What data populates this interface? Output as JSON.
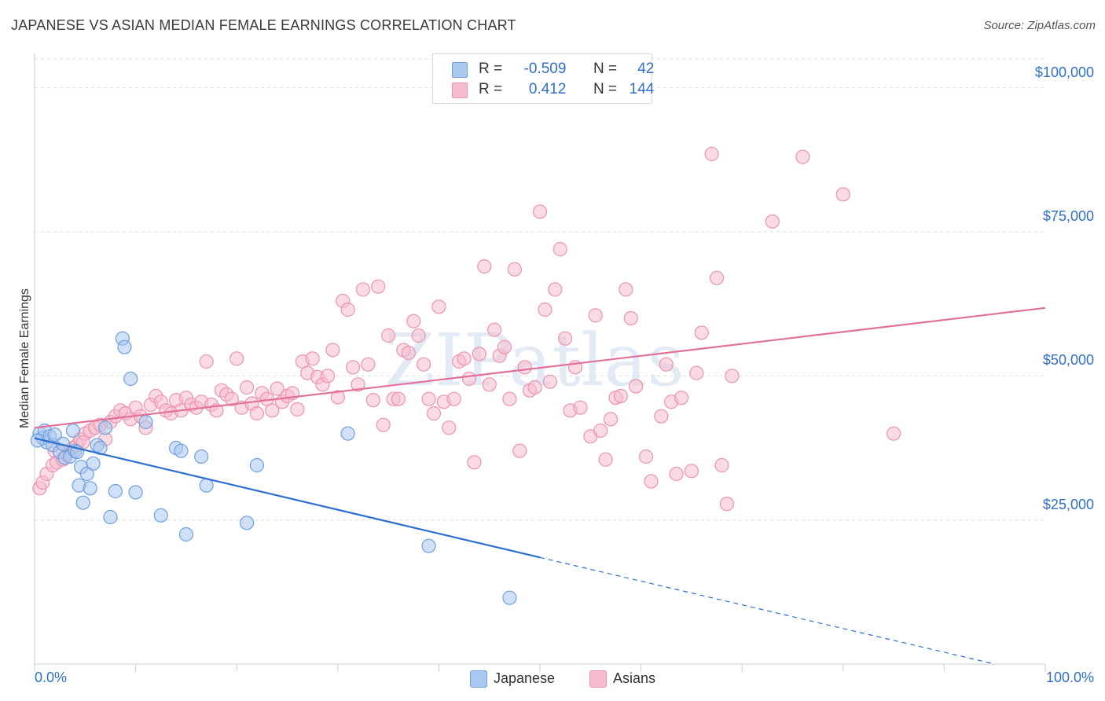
{
  "header": {
    "title": "JAPANESE VS ASIAN MEDIAN FEMALE EARNINGS CORRELATION CHART",
    "source": "Source: ZipAtlas.com"
  },
  "watermark": "ZIPatlas",
  "legend": {
    "rows": [
      {
        "r_label": "R =",
        "r_value": "-0.509",
        "n_label": "N =",
        "n_value": "42"
      },
      {
        "r_label": "R =",
        "r_value": "0.412",
        "n_label": "N =",
        "n_value": "144"
      }
    ]
  },
  "colors": {
    "japanese_fill": "#a9c7ef",
    "japanese_stroke": "#6f9fdc",
    "japanese_line": "#2d6fd0",
    "asians_fill": "#f6bccd",
    "asians_stroke": "#ec93ae",
    "asians_line": "#e2709a",
    "axis_text": "#2f6fc9"
  },
  "chart_data": {
    "type": "scatter",
    "title": "JAPANESE VS ASIAN MEDIAN FEMALE EARNINGS CORRELATION CHART",
    "xlabel": "",
    "ylabel": "Median Female Earnings",
    "xlim": [
      0,
      100
    ],
    "ylim": [
      0,
      105000
    ],
    "x_tick_labels": [
      "0.0%",
      "100.0%"
    ],
    "y_ticks": [
      25000,
      50000,
      75000,
      100000
    ],
    "y_tick_labels": [
      "$25,000",
      "$50,000",
      "$75,000",
      "$100,000"
    ],
    "grid": "horizontal dashed",
    "legend_position": "top-center",
    "series": [
      {
        "name": "Japanese",
        "points": [
          [
            0.5,
            40000
          ],
          [
            0.8,
            39200
          ],
          [
            1.0,
            40500
          ],
          [
            1.2,
            38500
          ],
          [
            1.5,
            39500
          ],
          [
            1.8,
            38000
          ],
          [
            2.0,
            39800
          ],
          [
            2.5,
            36800
          ],
          [
            2.8,
            38200
          ],
          [
            3.0,
            35800
          ],
          [
            3.5,
            36000
          ],
          [
            3.8,
            40500
          ],
          [
            4.0,
            37000
          ],
          [
            4.2,
            36800
          ],
          [
            4.4,
            31000
          ],
          [
            4.6,
            34200
          ],
          [
            4.8,
            28000
          ],
          [
            5.2,
            33000
          ],
          [
            5.5,
            30500
          ],
          [
            5.8,
            34800
          ],
          [
            6.2,
            38000
          ],
          [
            6.5,
            37500
          ],
          [
            7.0,
            41000
          ],
          [
            7.5,
            25500
          ],
          [
            8.0,
            30000
          ],
          [
            8.7,
            56500
          ],
          [
            8.9,
            55000
          ],
          [
            9.5,
            49500
          ],
          [
            10.0,
            29800
          ],
          [
            11.0,
            42000
          ],
          [
            12.5,
            25800
          ],
          [
            14.0,
            37500
          ],
          [
            14.5,
            37000
          ],
          [
            15.0,
            22500
          ],
          [
            16.5,
            36000
          ],
          [
            17.0,
            31000
          ],
          [
            21.0,
            24500
          ],
          [
            22.0,
            34500
          ],
          [
            31.0,
            40000
          ],
          [
            39.0,
            20500
          ],
          [
            47.0,
            11500
          ],
          [
            0.3,
            38800
          ]
        ]
      },
      {
        "name": "Asians",
        "points": [
          [
            0.5,
            30500
          ],
          [
            0.8,
            31500
          ],
          [
            1.2,
            33000
          ],
          [
            1.8,
            34500
          ],
          [
            2.2,
            35000
          ],
          [
            2.8,
            35500
          ],
          [
            3.2,
            36500
          ],
          [
            3.8,
            37500
          ],
          [
            4.2,
            38000
          ],
          [
            4.5,
            39000
          ],
          [
            5.0,
            40000
          ],
          [
            5.5,
            40500
          ],
          [
            6.0,
            41000
          ],
          [
            6.5,
            41500
          ],
          [
            7.0,
            39000
          ],
          [
            7.5,
            42000
          ],
          [
            8.0,
            43000
          ],
          [
            8.5,
            44000
          ],
          [
            9.0,
            43500
          ],
          [
            9.5,
            42500
          ],
          [
            10.0,
            44500
          ],
          [
            10.5,
            43000
          ],
          [
            11.0,
            41000
          ],
          [
            11.5,
            45000
          ],
          [
            12.0,
            46500
          ],
          [
            12.5,
            45500
          ],
          [
            13.0,
            44000
          ],
          [
            13.5,
            43500
          ],
          [
            14.0,
            45800
          ],
          [
            14.5,
            44000
          ],
          [
            15.0,
            46200
          ],
          [
            15.5,
            45000
          ],
          [
            16.0,
            44500
          ],
          [
            16.5,
            45500
          ],
          [
            17.0,
            52500
          ],
          [
            17.5,
            45000
          ],
          [
            18.0,
            44000
          ],
          [
            18.5,
            47500
          ],
          [
            19.0,
            46800
          ],
          [
            19.5,
            46000
          ],
          [
            20.0,
            53000
          ],
          [
            20.5,
            44500
          ],
          [
            21.0,
            48000
          ],
          [
            21.5,
            45200
          ],
          [
            22.0,
            43500
          ],
          [
            22.5,
            47000
          ],
          [
            23.0,
            46000
          ],
          [
            23.5,
            44000
          ],
          [
            24.0,
            47800
          ],
          [
            24.5,
            45500
          ],
          [
            25.0,
            46500
          ],
          [
            25.5,
            47000
          ],
          [
            26.0,
            44200
          ],
          [
            26.5,
            52500
          ],
          [
            27.0,
            50500
          ],
          [
            27.5,
            53000
          ],
          [
            28.0,
            49800
          ],
          [
            28.5,
            48500
          ],
          [
            29.0,
            50000
          ],
          [
            29.5,
            54500
          ],
          [
            30.0,
            46300
          ],
          [
            30.5,
            63000
          ],
          [
            31.0,
            61500
          ],
          [
            31.5,
            51500
          ],
          [
            32.0,
            48500
          ],
          [
            32.5,
            65000
          ],
          [
            33.0,
            52000
          ],
          [
            33.5,
            45800
          ],
          [
            34.0,
            65500
          ],
          [
            34.5,
            41500
          ],
          [
            35.0,
            57000
          ],
          [
            35.5,
            46000
          ],
          [
            36.0,
            46000
          ],
          [
            36.5,
            54500
          ],
          [
            37.0,
            54000
          ],
          [
            37.5,
            59500
          ],
          [
            38.0,
            57000
          ],
          [
            38.5,
            52000
          ],
          [
            39.0,
            46000
          ],
          [
            39.5,
            43500
          ],
          [
            40.0,
            62000
          ],
          [
            40.5,
            45500
          ],
          [
            41.0,
            41000
          ],
          [
            41.5,
            46000
          ],
          [
            42.0,
            52500
          ],
          [
            42.5,
            53000
          ],
          [
            43.0,
            49500
          ],
          [
            43.5,
            35000
          ],
          [
            44.0,
            53800
          ],
          [
            44.5,
            69000
          ],
          [
            45.0,
            48500
          ],
          [
            45.5,
            58000
          ],
          [
            46.0,
            53500
          ],
          [
            46.5,
            55000
          ],
          [
            47.0,
            46000
          ],
          [
            47.5,
            68500
          ],
          [
            48.0,
            37000
          ],
          [
            48.5,
            51500
          ],
          [
            49.0,
            47500
          ],
          [
            49.5,
            48000
          ],
          [
            50.0,
            78500
          ],
          [
            50.5,
            61500
          ],
          [
            51.0,
            49000
          ],
          [
            51.5,
            65000
          ],
          [
            52.0,
            72000
          ],
          [
            52.5,
            56500
          ],
          [
            53.0,
            44000
          ],
          [
            53.5,
            51500
          ],
          [
            54.0,
            44500
          ],
          [
            55.0,
            39500
          ],
          [
            55.5,
            60500
          ],
          [
            56.0,
            40500
          ],
          [
            56.5,
            35500
          ],
          [
            57.0,
            42500
          ],
          [
            57.5,
            46200
          ],
          [
            58.0,
            46500
          ],
          [
            58.5,
            65000
          ],
          [
            59.0,
            60000
          ],
          [
            59.5,
            48200
          ],
          [
            60.5,
            36000
          ],
          [
            61.0,
            31700
          ],
          [
            62.0,
            43000
          ],
          [
            62.5,
            52000
          ],
          [
            63.0,
            45500
          ],
          [
            63.5,
            33000
          ],
          [
            64.0,
            46200
          ],
          [
            65.0,
            33500
          ],
          [
            65.5,
            50500
          ],
          [
            66.0,
            57500
          ],
          [
            67.0,
            88500
          ],
          [
            67.5,
            67000
          ],
          [
            68.0,
            34500
          ],
          [
            68.5,
            27800
          ],
          [
            69.0,
            50000
          ],
          [
            73.0,
            76800
          ],
          [
            76.0,
            88000
          ],
          [
            80.0,
            81500
          ],
          [
            85.0,
            40000
          ],
          [
            2.0,
            37000
          ],
          [
            4.8,
            38500
          ]
        ]
      }
    ],
    "trendlines": [
      {
        "series": "Japanese",
        "solid_from": [
          0,
          39200
        ],
        "solid_to": [
          50,
          18500
        ],
        "dashed_to": [
          95,
          0
        ]
      },
      {
        "series": "Asians",
        "from": [
          0,
          41000
        ],
        "to": [
          100,
          61800
        ]
      }
    ]
  },
  "bottom_legend": {
    "items": [
      {
        "label": "Japanese"
      },
      {
        "label": "Asians"
      }
    ]
  }
}
